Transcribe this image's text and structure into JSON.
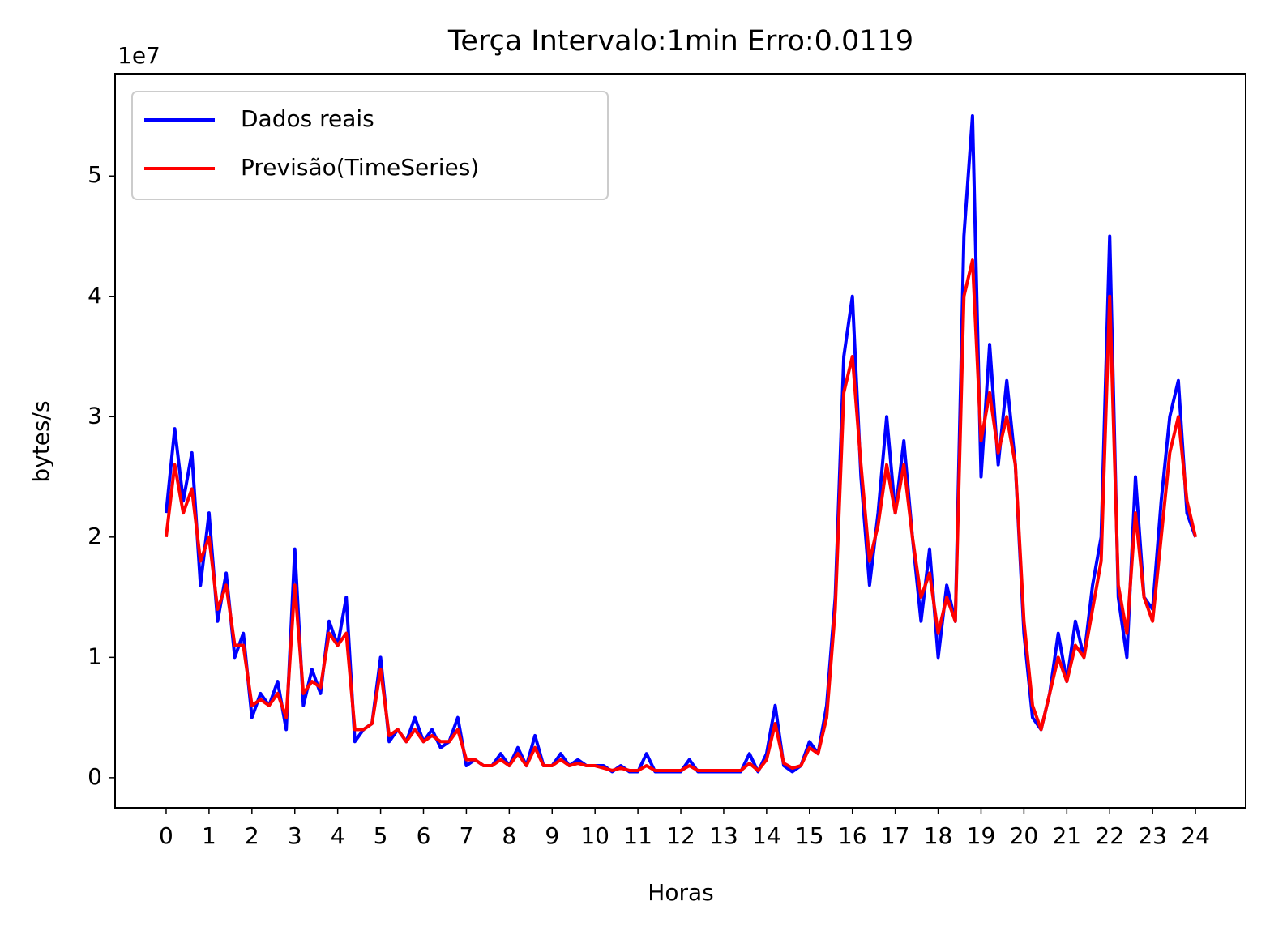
{
  "chart_data": {
    "type": "line",
    "title": "Terça Intervalo:1min Erro:0.0119",
    "xlabel": "Horas",
    "ylabel": "bytes/s",
    "offset_text": "1e7",
    "x": [
      0,
      0.2,
      0.4,
      0.6,
      0.8,
      1,
      1.2,
      1.4,
      1.6,
      1.8,
      2,
      2.2,
      2.4,
      2.6,
      2.8,
      3,
      3.2,
      3.4,
      3.6,
      3.8,
      4,
      4.2,
      4.4,
      4.6,
      4.8,
      5,
      5.2,
      5.4,
      5.6,
      5.8,
      6,
      6.2,
      6.4,
      6.6,
      6.8,
      7,
      7.2,
      7.4,
      7.6,
      7.8,
      8,
      8.2,
      8.4,
      8.6,
      8.8,
      9,
      9.2,
      9.4,
      9.6,
      9.8,
      10,
      10.2,
      10.4,
      10.6,
      10.8,
      11,
      11.2,
      11.4,
      11.6,
      11.8,
      12,
      12.2,
      12.4,
      12.6,
      12.8,
      13,
      13.2,
      13.4,
      13.6,
      13.8,
      14,
      14.2,
      14.4,
      14.6,
      14.8,
      15,
      15.2,
      15.4,
      15.6,
      15.8,
      16,
      16.2,
      16.4,
      16.6,
      16.8,
      17,
      17.2,
      17.4,
      17.6,
      17.8,
      18,
      18.2,
      18.4,
      18.6,
      18.8,
      19,
      19.2,
      19.4,
      19.6,
      19.8,
      20,
      20.2,
      20.4,
      20.6,
      20.8,
      21,
      21.2,
      21.4,
      21.6,
      21.8,
      22,
      22.2,
      22.4,
      22.6,
      22.8,
      23,
      23.2,
      23.4,
      23.6,
      23.8,
      24
    ],
    "series": [
      {
        "name": "Dados reais",
        "color": "#0000ff",
        "values": [
          2.2,
          2.9,
          2.3,
          2.7,
          1.6,
          2.2,
          1.3,
          1.7,
          1.0,
          1.2,
          0.5,
          0.7,
          0.6,
          0.8,
          0.4,
          1.9,
          0.6,
          0.9,
          0.7,
          1.3,
          1.1,
          1.5,
          0.3,
          0.4,
          0.45,
          1.0,
          0.3,
          0.4,
          0.3,
          0.5,
          0.3,
          0.4,
          0.25,
          0.3,
          0.5,
          0.1,
          0.15,
          0.1,
          0.1,
          0.2,
          0.1,
          0.25,
          0.1,
          0.35,
          0.1,
          0.1,
          0.2,
          0.1,
          0.15,
          0.1,
          0.1,
          0.1,
          0.05,
          0.1,
          0.05,
          0.05,
          0.2,
          0.05,
          0.05,
          0.05,
          0.05,
          0.15,
          0.05,
          0.05,
          0.05,
          0.05,
          0.05,
          0.05,
          0.2,
          0.05,
          0.2,
          0.6,
          0.1,
          0.05,
          0.1,
          0.3,
          0.2,
          0.6,
          1.5,
          3.5,
          4.0,
          2.5,
          1.6,
          2.2,
          3.0,
          2.2,
          2.8,
          2.0,
          1.3,
          1.9,
          1.0,
          1.6,
          1.3,
          4.5,
          5.5,
          2.5,
          3.6,
          2.6,
          3.3,
          2.6,
          1.2,
          0.5,
          0.4,
          0.7,
          1.2,
          0.8,
          1.3,
          1.0,
          1.6,
          2.0,
          4.5,
          1.5,
          1.0,
          2.5,
          1.5,
          1.4,
          2.3,
          3.0,
          3.3,
          2.2,
          2.0
        ]
      },
      {
        "name": "Previsão(TimeSeries)",
        "color": "#ff0000",
        "values": [
          2.0,
          2.6,
          2.2,
          2.4,
          1.8,
          2.0,
          1.4,
          1.6,
          1.1,
          1.1,
          0.6,
          0.65,
          0.6,
          0.7,
          0.5,
          1.6,
          0.7,
          0.8,
          0.75,
          1.2,
          1.1,
          1.2,
          0.4,
          0.4,
          0.45,
          0.9,
          0.35,
          0.4,
          0.3,
          0.4,
          0.3,
          0.35,
          0.3,
          0.3,
          0.4,
          0.15,
          0.15,
          0.1,
          0.1,
          0.15,
          0.1,
          0.2,
          0.1,
          0.25,
          0.1,
          0.1,
          0.15,
          0.1,
          0.12,
          0.1,
          0.1,
          0.08,
          0.06,
          0.08,
          0.06,
          0.06,
          0.1,
          0.06,
          0.06,
          0.06,
          0.06,
          0.1,
          0.06,
          0.06,
          0.06,
          0.06,
          0.06,
          0.06,
          0.12,
          0.06,
          0.15,
          0.45,
          0.12,
          0.08,
          0.1,
          0.25,
          0.2,
          0.5,
          1.4,
          3.2,
          3.5,
          2.6,
          1.8,
          2.1,
          2.6,
          2.2,
          2.6,
          2.0,
          1.5,
          1.7,
          1.2,
          1.5,
          1.3,
          4.0,
          4.3,
          2.8,
          3.2,
          2.7,
          3.0,
          2.6,
          1.3,
          0.6,
          0.4,
          0.7,
          1.0,
          0.8,
          1.1,
          1.0,
          1.4,
          1.8,
          4.0,
          1.6,
          1.2,
          2.2,
          1.5,
          1.3,
          2.0,
          2.7,
          3.0,
          2.3,
          2.0
        ]
      }
    ],
    "xlim": [
      -1.19,
      25.17
    ],
    "ylim": [
      -0.25,
      5.85
    ],
    "xticks": [
      0,
      1,
      2,
      3,
      4,
      5,
      6,
      7,
      8,
      9,
      10,
      11,
      12,
      13,
      14,
      15,
      16,
      17,
      18,
      19,
      20,
      21,
      22,
      23,
      24
    ],
    "yticks": [
      0,
      1,
      2,
      3,
      4,
      5
    ],
    "legend": "upper left",
    "grid": false
  }
}
